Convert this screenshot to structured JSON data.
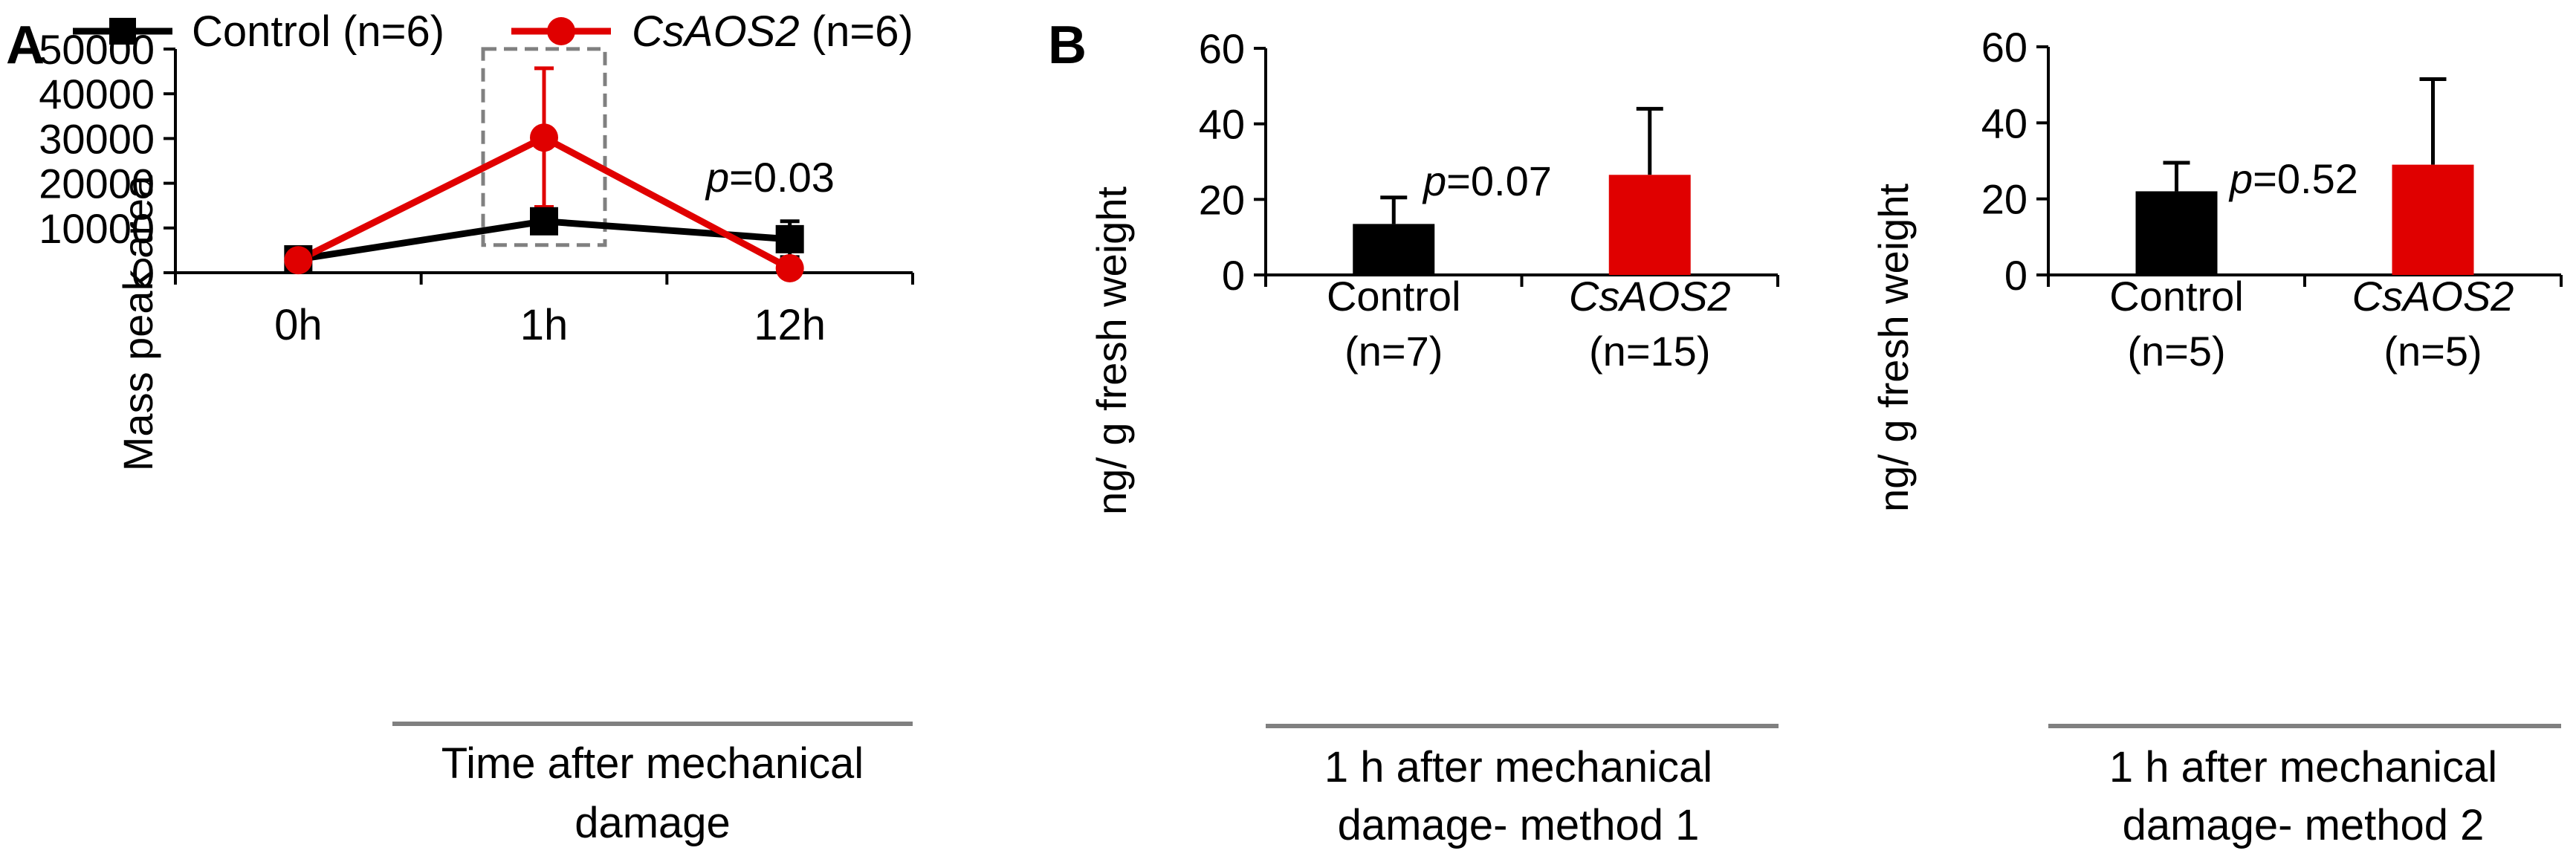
{
  "panels": {
    "A": {
      "letter": "A"
    },
    "B": {
      "letter": "B"
    }
  },
  "colors": {
    "control": "#000000",
    "treatment": "#e00000",
    "axis": "#000000",
    "separator": "#808080",
    "highlight_box": "#808080"
  },
  "chart_data": [
    {
      "panel": "A",
      "type": "line",
      "legend": [
        {
          "name": "Control (n=6)",
          "plain": "Control (n=6)",
          "color": "#000000",
          "marker": "square"
        },
        {
          "name": "CsAOS2 (n=6)",
          "italic": "CsAOS2",
          "plain": " (n=6)",
          "color": "#e00000",
          "marker": "circle"
        }
      ],
      "categories": [
        "0h",
        "1h",
        "12h"
      ],
      "series": [
        {
          "name": "Control (n=6)",
          "values": [
            3000,
            11500,
            7500
          ],
          "error": [
            300,
            2000,
            4000
          ]
        },
        {
          "name": "CsAOS2 (n=6)",
          "values": [
            2800,
            30200,
            1000
          ],
          "error": [
            200,
            15500,
            200
          ]
        }
      ],
      "ylabel": "Mass peak area",
      "yticks": [
        0,
        10000,
        20000,
        30000,
        40000,
        50000
      ],
      "ylim": [
        0,
        50000
      ],
      "xlabel": [
        "Time after mechanical",
        "damage"
      ],
      "annotation": {
        "italic": "p",
        "plain": "=0.03"
      },
      "legend_placement": "top",
      "grid": false
    },
    {
      "panel": "B-1",
      "type": "bar",
      "categories": [
        {
          "label": "Control",
          "italic": false,
          "n": "(n=7)"
        },
        {
          "label": "CsAOS2",
          "italic": true,
          "n": "(n=15)"
        }
      ],
      "values": [
        13.5,
        26.5
      ],
      "error": [
        7,
        17.5
      ],
      "colors": [
        "#000000",
        "#e00000"
      ],
      "ylabel": "ng/ g fresh weight",
      "yticks": [
        0,
        20,
        40,
        60
      ],
      "ylim": [
        0,
        60
      ],
      "xlabel": [
        "1 h after mechanical",
        "damage- method 1"
      ],
      "annotation": {
        "italic": "p",
        "plain": "=0.07"
      },
      "grid": false
    },
    {
      "panel": "B-2",
      "type": "bar",
      "categories": [
        {
          "label": "Control",
          "italic": false,
          "n": "(n=5)"
        },
        {
          "label": "CsAOS2",
          "italic": true,
          "n": "(n=5)"
        }
      ],
      "values": [
        22,
        29
      ],
      "error": [
        7.5,
        22.5
      ],
      "colors": [
        "#000000",
        "#e00000"
      ],
      "ylabel": "ng/ g fresh weight",
      "yticks": [
        0,
        20,
        40,
        60
      ],
      "ylim": [
        0,
        60
      ],
      "xlabel": [
        "1 h after mechanical",
        "damage- method 2"
      ],
      "annotation": {
        "italic": "p",
        "plain": "=0.52"
      },
      "grid": false
    }
  ]
}
